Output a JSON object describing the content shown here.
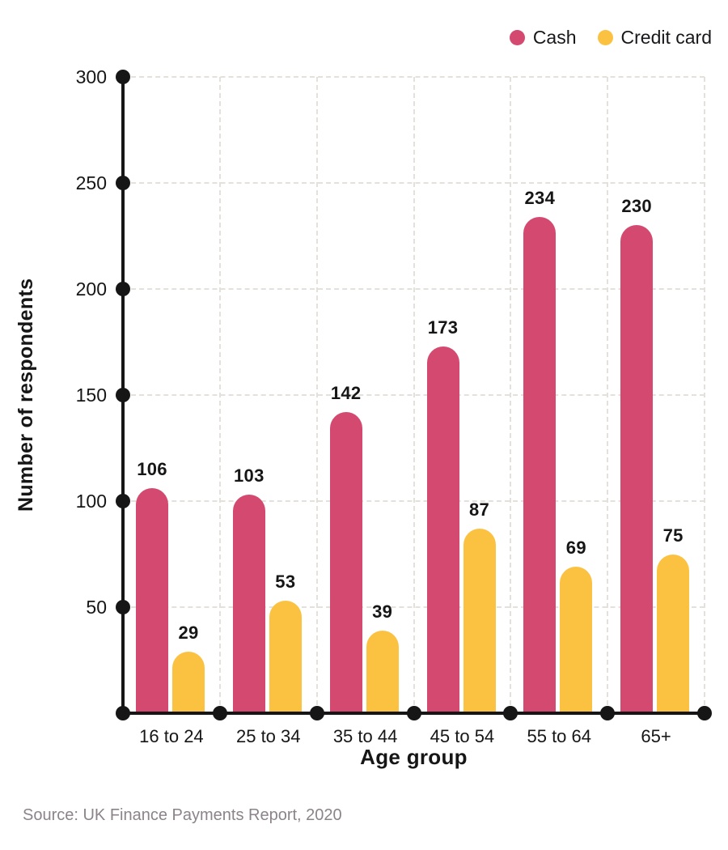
{
  "chart_data": {
    "type": "bar",
    "categories": [
      "16 to 24",
      "25 to 34",
      "35 to 44",
      "45 to 54",
      "55 to 64",
      "65+"
    ],
    "series": [
      {
        "name": "Cash",
        "color": "#d4496f",
        "values": [
          106,
          103,
          142,
          173,
          234,
          230
        ]
      },
      {
        "name": "Credit card",
        "color": "#fbc242",
        "values": [
          29,
          53,
          39,
          87,
          69,
          75
        ]
      }
    ],
    "xlabel": "Age group",
    "ylabel": "Number of respondents",
    "ylim": [
      0,
      300
    ],
    "yticks": [
      50,
      100,
      150,
      200,
      250,
      300
    ],
    "grid": true,
    "legend_position": "top-right"
  },
  "source": {
    "text": "Source: UK Finance Payments Report, 2020"
  },
  "colors": {
    "axis": "#161616",
    "grid": "#e4e1dd",
    "label": "#161616",
    "source_text": "#8b8489",
    "background": "#ffffff"
  }
}
